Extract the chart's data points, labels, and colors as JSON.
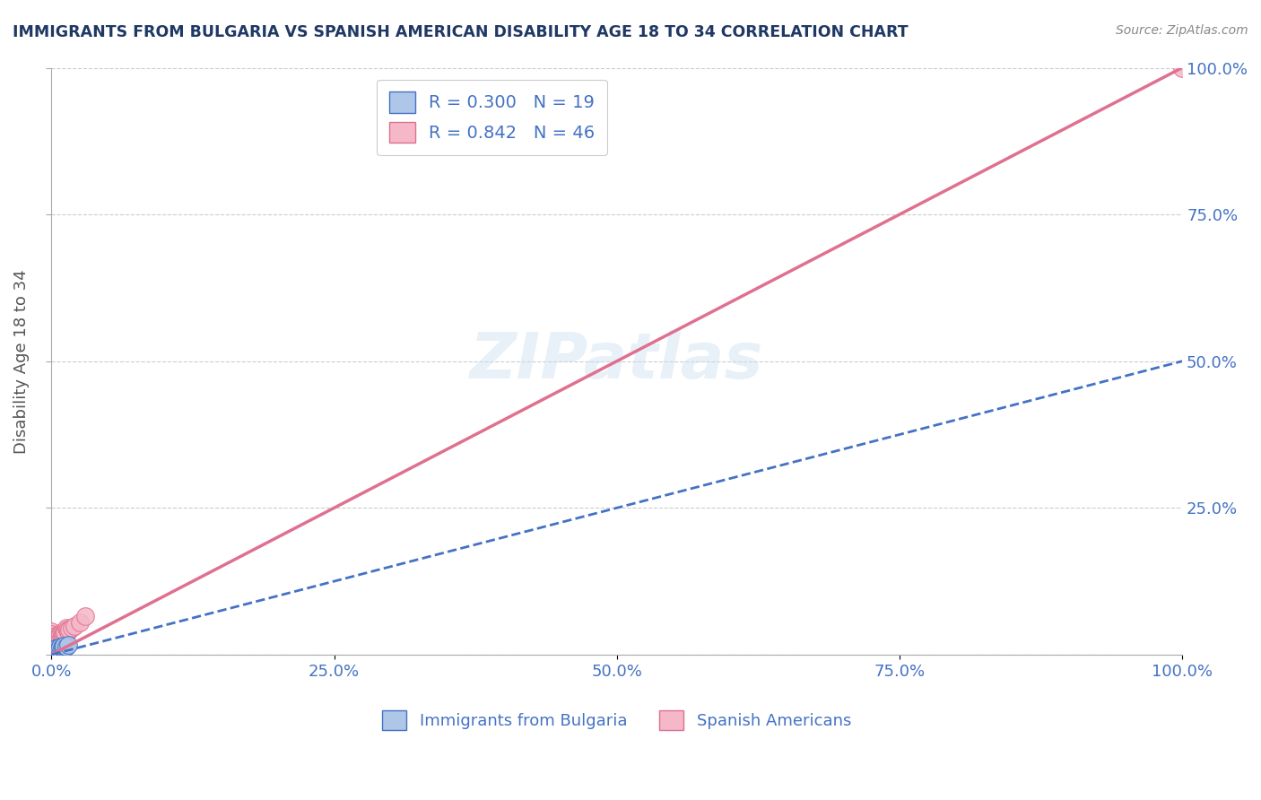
{
  "title": "IMMIGRANTS FROM BULGARIA VS SPANISH AMERICAN DISABILITY AGE 18 TO 34 CORRELATION CHART",
  "source": "Source: ZipAtlas.com",
  "ylabel": "Disability Age 18 to 34",
  "watermark": "ZIPatlas",
  "bg_color": "#ffffff",
  "plot_bg_color": "#ffffff",
  "grid_color": "#cccccc",
  "axis_label_color": "#4472c4",
  "title_color": "#1f3864",
  "bulgaria_color": "#aec6e8",
  "bulgaria_edge_color": "#4472c4",
  "bulgaria_R": 0.3,
  "bulgaria_N": 19,
  "bulgaria_scatter_x": [
    0.0,
    0.001,
    0.001,
    0.002,
    0.002,
    0.003,
    0.003,
    0.004,
    0.004,
    0.005,
    0.005,
    0.006,
    0.007,
    0.008,
    0.009,
    0.01,
    0.011,
    0.013,
    0.015
  ],
  "bulgaria_scatter_y": [
    0.002,
    0.005,
    0.008,
    0.003,
    0.006,
    0.004,
    0.009,
    0.007,
    0.01,
    0.008,
    0.012,
    0.009,
    0.011,
    0.013,
    0.012,
    0.014,
    0.015,
    0.013,
    0.016
  ],
  "spanish_color": "#f4b8c8",
  "spanish_edge_color": "#e07090",
  "spanish_R": 0.842,
  "spanish_N": 46,
  "spanish_scatter_x": [
    0.0,
    0.0,
    0.0,
    0.0,
    0.0,
    0.001,
    0.001,
    0.001,
    0.001,
    0.002,
    0.002,
    0.002,
    0.003,
    0.003,
    0.003,
    0.003,
    0.004,
    0.004,
    0.004,
    0.005,
    0.005,
    0.005,
    0.005,
    0.006,
    0.006,
    0.006,
    0.007,
    0.007,
    0.007,
    0.008,
    0.008,
    0.009,
    0.009,
    0.01,
    0.01,
    0.011,
    0.012,
    0.013,
    0.014,
    0.015,
    0.016,
    0.018,
    0.02,
    0.025,
    0.03,
    1.0
  ],
  "spanish_scatter_y": [
    0.04,
    0.035,
    0.02,
    0.01,
    0.005,
    0.025,
    0.02,
    0.015,
    0.005,
    0.03,
    0.025,
    0.02,
    0.03,
    0.028,
    0.022,
    0.015,
    0.032,
    0.027,
    0.02,
    0.028,
    0.024,
    0.018,
    0.01,
    0.03,
    0.025,
    0.018,
    0.033,
    0.028,
    0.022,
    0.035,
    0.025,
    0.038,
    0.028,
    0.035,
    0.025,
    0.038,
    0.038,
    0.045,
    0.042,
    0.04,
    0.042,
    0.045,
    0.048,
    0.055,
    0.065,
    1.0
  ],
  "xlim": [
    0.0,
    1.0
  ],
  "ylim": [
    0.0,
    1.0
  ],
  "xticks": [
    0.0,
    0.25,
    0.5,
    0.75,
    1.0
  ],
  "yticks": [
    0.0,
    0.25,
    0.5,
    0.75,
    1.0
  ],
  "xticklabels": [
    "0.0%",
    "25.0%",
    "50.0%",
    "75.0%",
    "100.0%"
  ],
  "right_yticklabels": [
    "",
    "25.0%",
    "50.0%",
    "75.0%",
    "100.0%"
  ],
  "legend_bulgaria": "Immigrants from Bulgaria",
  "legend_spanish": "Spanish Americans",
  "bulgaria_line_color": "#4472c4",
  "spanish_line_color": "#e07090",
  "spanish_line_x0": 0.0,
  "spanish_line_y0": 0.0,
  "spanish_line_x1": 1.0,
  "spanish_line_y1": 1.0,
  "bulgaria_line_x0": 0.0,
  "bulgaria_line_y0": 0.0,
  "bulgaria_line_x1": 1.0,
  "bulgaria_line_y1": 0.5
}
